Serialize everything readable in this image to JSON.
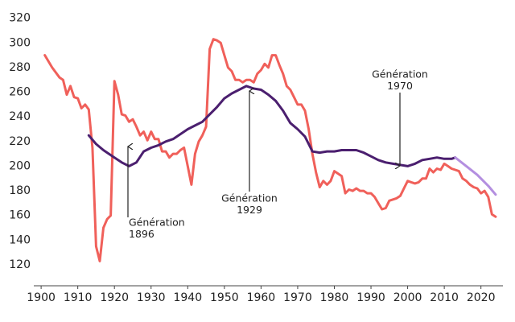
{
  "chart_data": {
    "type": "line",
    "xlim": [
      1898,
      2026
    ],
    "ylim": [
      103,
      325
    ],
    "xticks": [
      1900,
      1910,
      1920,
      1930,
      1940,
      1950,
      1960,
      1970,
      1980,
      1990,
      2000,
      2010,
      2020
    ],
    "yticks": [
      120,
      140,
      160,
      180,
      200,
      220,
      240,
      260,
      280,
      300,
      320
    ],
    "grid": false,
    "series": [
      {
        "color": "#f0605a",
        "x": [
          1901,
          1903,
          1905,
          1906,
          1907,
          1908,
          1909,
          1910,
          1911,
          1912,
          1913,
          1914,
          1915,
          1916,
          1917,
          1918,
          1919,
          1920,
          1921,
          1922,
          1923,
          1924,
          1925,
          1926,
          1927,
          1928,
          1929,
          1930,
          1931,
          1932,
          1933,
          1934,
          1935,
          1936,
          1937,
          1938,
          1939,
          1940,
          1941,
          1942,
          1943,
          1944,
          1945,
          1946,
          1947,
          1948,
          1949,
          1950,
          1951,
          1952,
          1953,
          1954,
          1955,
          1956,
          1957,
          1958,
          1959,
          1960,
          1961,
          1962,
          1963,
          1964,
          1965,
          1966,
          1967,
          1968,
          1969,
          1970,
          1971,
          1972,
          1973,
          1974,
          1975,
          1976,
          1977,
          1978,
          1979,
          1980,
          1981,
          1982,
          1983,
          1984,
          1985,
          1986,
          1987,
          1988,
          1989,
          1990,
          1991,
          1992,
          1993,
          1994,
          1995,
          1996,
          1997,
          1998,
          1999,
          2000,
          2001,
          2002,
          2003,
          2004,
          2005,
          2006,
          2007,
          2008,
          2009,
          2010,
          2011,
          2012,
          2013,
          2014,
          2015,
          2016,
          2017,
          2018,
          2019,
          2020,
          2021,
          2022,
          2023,
          2024
        ],
        "values": [
          290,
          280,
          272,
          270,
          258,
          265,
          256,
          255,
          247,
          250,
          246,
          215,
          135,
          123,
          150,
          157,
          160,
          269,
          258,
          242,
          241,
          236,
          238,
          232,
          225,
          228,
          221,
          228,
          222,
          222,
          212,
          212,
          207,
          210,
          210,
          213,
          215,
          200,
          185,
          210,
          220,
          225,
          232,
          295,
          303,
          302,
          300,
          290,
          280,
          277,
          270,
          270,
          268,
          270,
          270,
          268,
          275,
          278,
          283,
          280,
          290,
          290,
          282,
          275,
          265,
          262,
          256,
          250,
          250,
          245,
          230,
          210,
          195,
          183,
          188,
          185,
          188,
          196,
          194,
          192,
          178,
          181,
          180,
          182,
          180,
          180,
          178,
          178,
          175,
          170,
          165,
          166,
          172,
          173,
          174,
          176,
          182,
          188,
          187,
          186,
          187,
          190,
          190,
          198,
          195,
          198,
          197,
          202,
          200,
          198,
          197,
          196,
          190,
          188,
          185,
          183,
          182,
          178,
          180,
          175,
          161,
          159
        ]
      },
      {
        "color": "#4b1f6f",
        "x": [
          1913,
          1915,
          1917,
          1920,
          1922,
          1924,
          1926,
          1928,
          1930,
          1932,
          1934,
          1936,
          1938,
          1940,
          1942,
          1944,
          1946,
          1948,
          1950,
          1952,
          1954,
          1956,
          1958,
          1960,
          1962,
          1964,
          1966,
          1968,
          1970,
          1972,
          1974,
          1976,
          1978,
          1980,
          1982,
          1984,
          1986,
          1988,
          1990,
          1992,
          1994,
          1996,
          1998,
          2000,
          2002,
          2004,
          2006,
          2008,
          2010,
          2012,
          2013
        ],
        "values": [
          225,
          218,
          213,
          207,
          203,
          200,
          203,
          212,
          215,
          217,
          220,
          222,
          226,
          230,
          233,
          236,
          242,
          248,
          255,
          259,
          262,
          265,
          263,
          262,
          258,
          253,
          245,
          235,
          230,
          224,
          212,
          211,
          212,
          212,
          213,
          213,
          213,
          211,
          208,
          205,
          203,
          202,
          201,
          200,
          202,
          205,
          206,
          207,
          206,
          206,
          207
        ]
      },
      {
        "color": "#b48fe0",
        "x": [
          2013,
          2016,
          2019,
          2022,
          2024
        ],
        "values": [
          207,
          200,
          193,
          184,
          177
        ]
      }
    ],
    "annotations": [
      {
        "lines": [
          "Génération",
          "1896"
        ]
      },
      {
        "lines": [
          "Génération",
          "1929"
        ]
      },
      {
        "lines": [
          "Génération",
          "1970"
        ]
      }
    ]
  }
}
